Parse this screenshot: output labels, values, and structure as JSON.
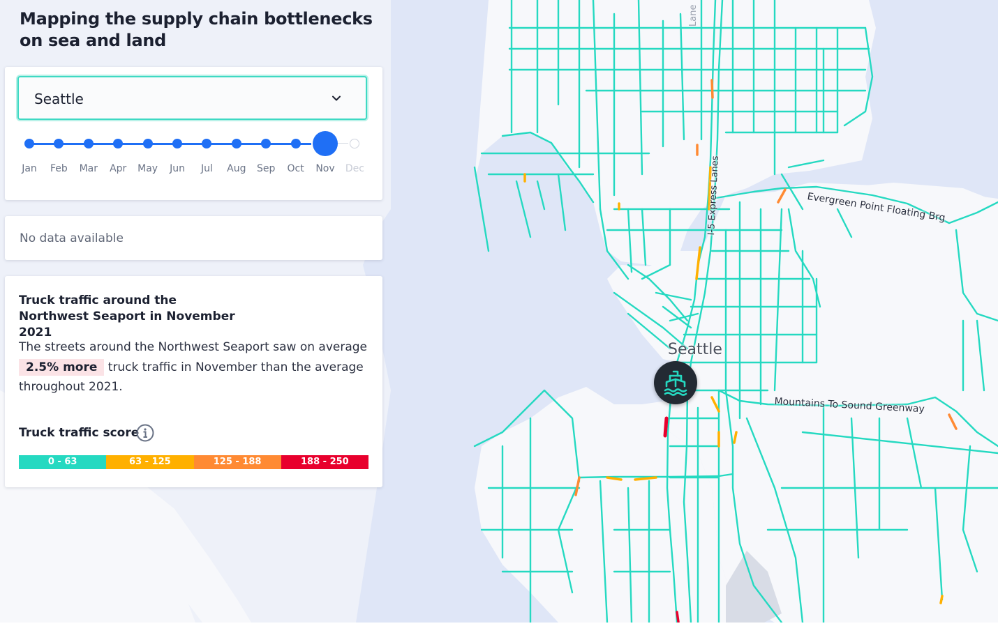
{
  "title": "Mapping the supply chain bottlenecks on sea and land",
  "selector": {
    "city": "Seattle",
    "months": [
      {
        "label": "Jan",
        "state": "past"
      },
      {
        "label": "Feb",
        "state": "past"
      },
      {
        "label": "Mar",
        "state": "past"
      },
      {
        "label": "Apr",
        "state": "past"
      },
      {
        "label": "May",
        "state": "past"
      },
      {
        "label": "Jun",
        "state": "past"
      },
      {
        "label": "Jul",
        "state": "past"
      },
      {
        "label": "Aug",
        "state": "past"
      },
      {
        "label": "Sep",
        "state": "past"
      },
      {
        "label": "Oct",
        "state": "past"
      },
      {
        "label": "Nov",
        "state": "active"
      },
      {
        "label": "Dec",
        "state": "disabled"
      }
    ]
  },
  "nodata": "No data available",
  "story": {
    "heading": "Truck traffic around the Northwest Seaport in November 2021",
    "text_before": "The streets around the Northwest Seaport saw on average",
    "highlight": "2.5% more",
    "text_after": "truck traffic in November than the average throughout 2021.",
    "score_label": "Truck traffic score",
    "legend": [
      {
        "label": "0 - 63",
        "color": "#25d9c1"
      },
      {
        "label": "63 - 125",
        "color": "#ffb000"
      },
      {
        "label": "125 - 188",
        "color": "#ff8a33"
      },
      {
        "label": "188 - 250",
        "color": "#e8002d"
      }
    ]
  },
  "map": {
    "labels": {
      "city": "Seattle",
      "bridge": "Evergreen Point Floating Brg",
      "highway": "Mountains To Sound Greenway",
      "express": "I-5 Express Lanes",
      "lane": "Lane"
    },
    "colors": {
      "water": "#dfe6f7",
      "land": "#f7f8fb",
      "road": "#25d9c1",
      "medium": "#ffb000",
      "high": "#ff8a33",
      "severe": "#e8002d"
    }
  },
  "icons": {
    "dropdown": "chevron-down-icon",
    "info": "info-icon",
    "port": "ship-icon"
  }
}
